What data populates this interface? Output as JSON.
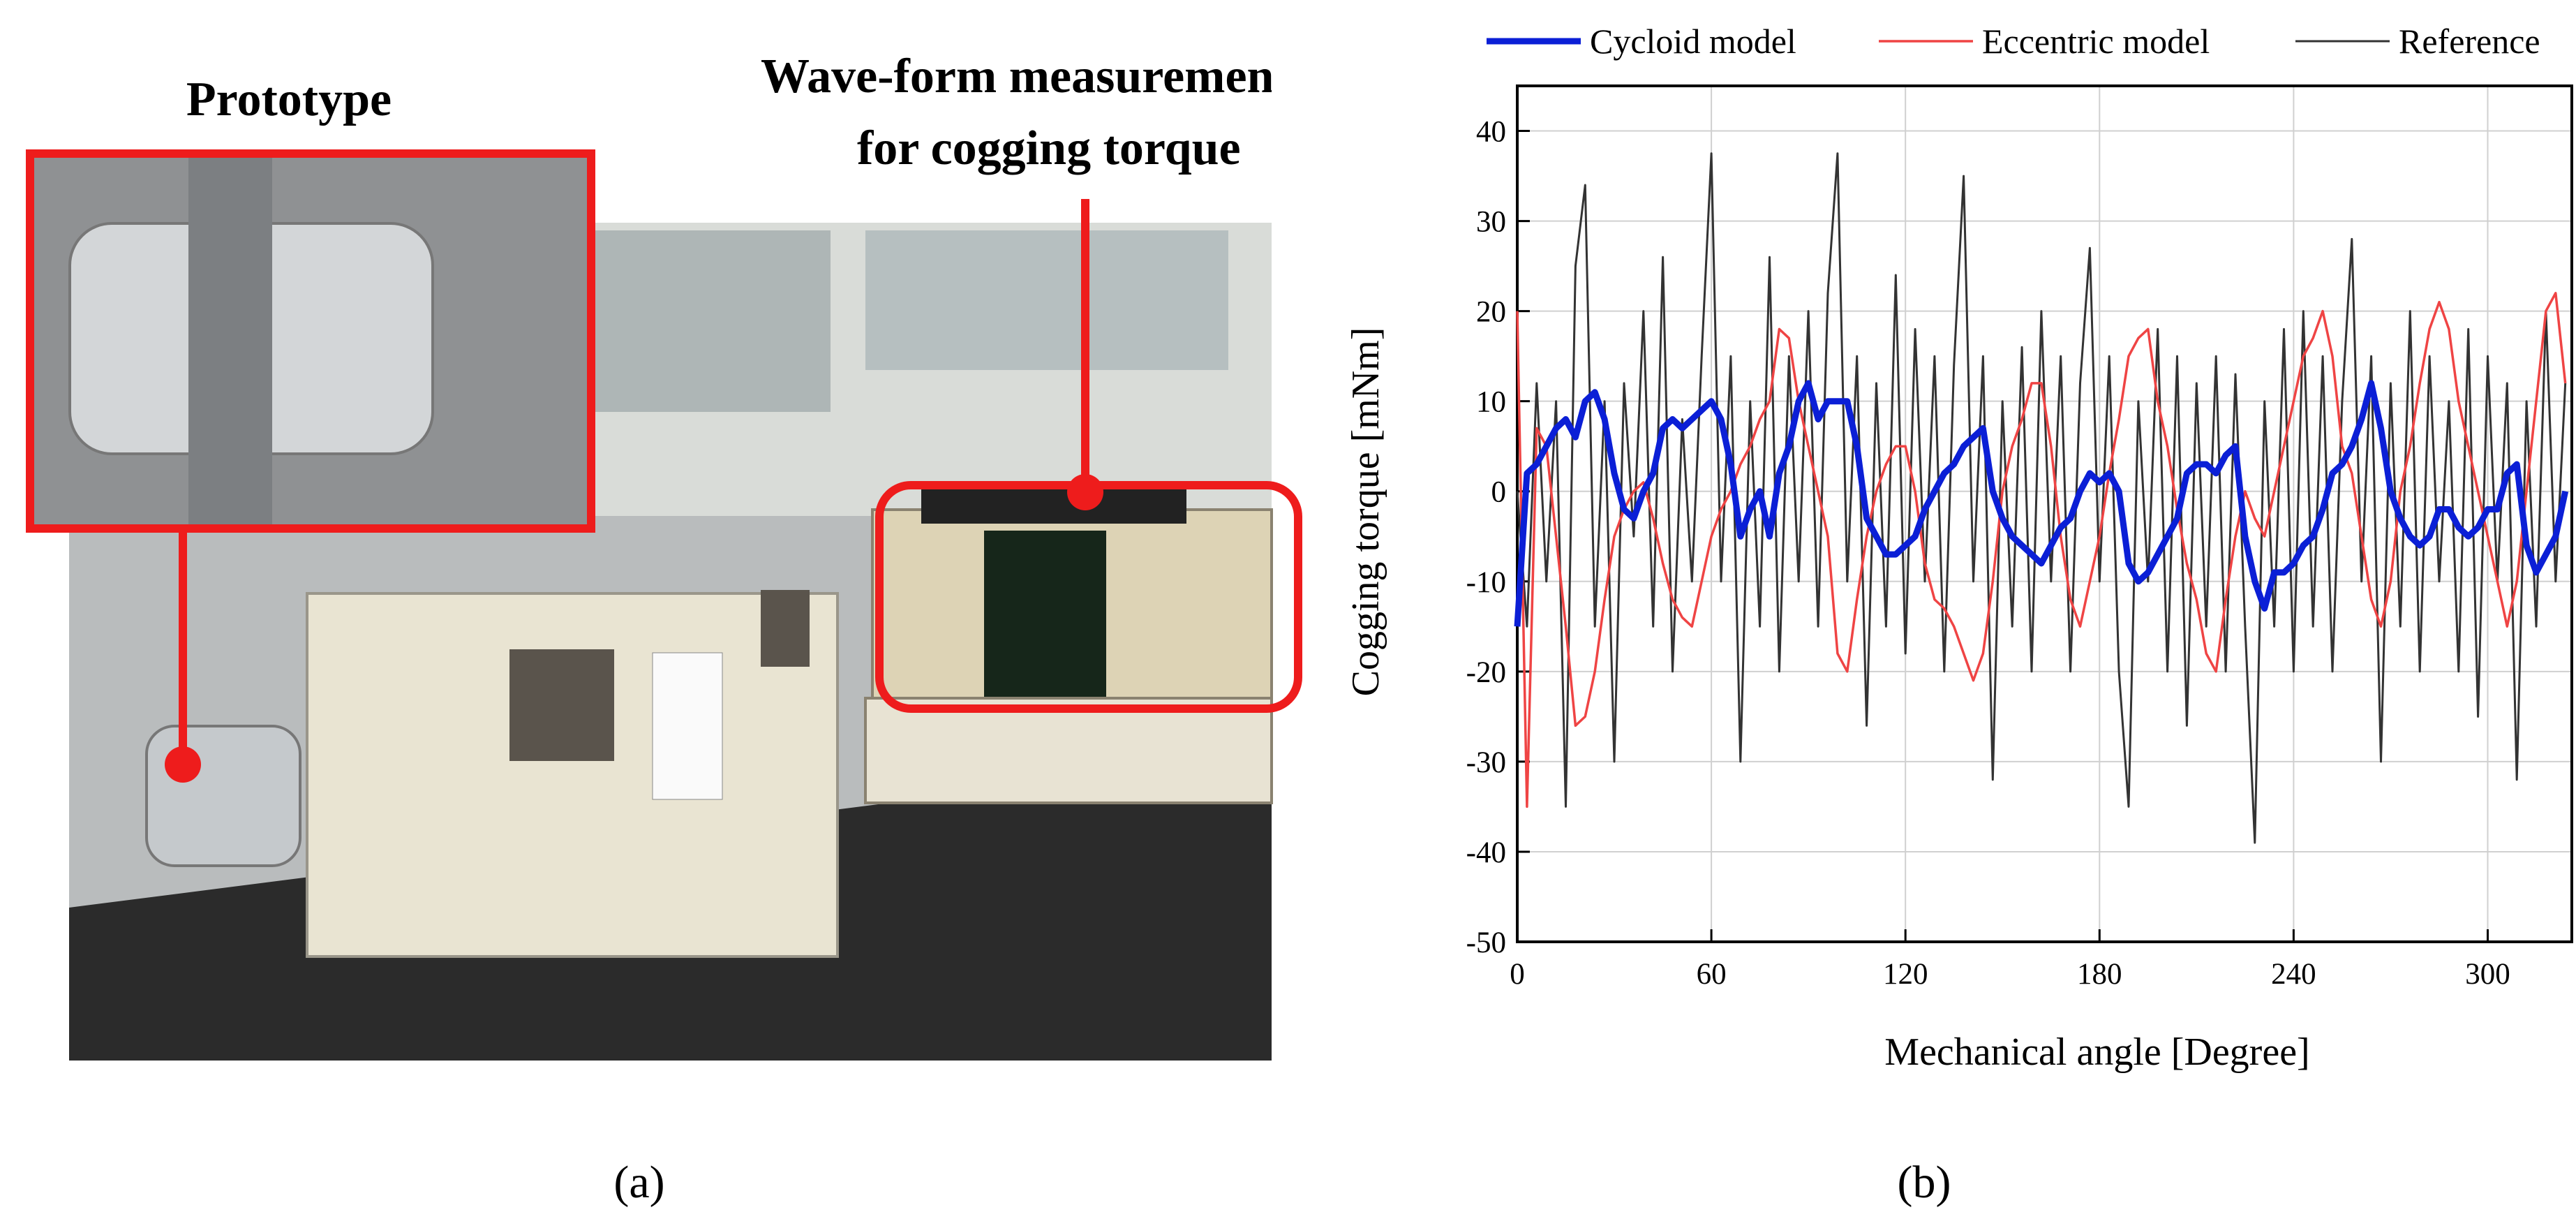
{
  "panel_a": {
    "labels": [
      "Prototype",
      "Wave-form measurement",
      "for cogging torque"
    ]
  },
  "captions": [
    "(a)",
    "(b)"
  ],
  "chart_data": {
    "type": "line",
    "xlabel": "Mechanical angle [Degree]",
    "ylabel": "Cogging torque [mNm]",
    "xlim": [
      0,
      326
    ],
    "ylim": [
      -50,
      45
    ],
    "xticks": [
      0,
      60,
      120,
      180,
      240,
      300
    ],
    "yticks": [
      -50,
      -40,
      -30,
      -20,
      -10,
      0,
      10,
      20,
      30,
      40
    ],
    "grid": true,
    "legend": "top",
    "x": [
      0,
      3,
      6,
      9,
      12,
      15,
      18,
      21,
      24,
      27,
      30,
      33,
      36,
      39,
      42,
      45,
      48,
      51,
      54,
      57,
      60,
      63,
      66,
      69,
      72,
      75,
      78,
      81,
      84,
      87,
      90,
      93,
      96,
      99,
      102,
      105,
      108,
      111,
      114,
      117,
      120,
      123,
      126,
      129,
      132,
      135,
      138,
      141,
      144,
      147,
      150,
      153,
      156,
      159,
      162,
      165,
      168,
      171,
      174,
      177,
      180,
      183,
      186,
      189,
      192,
      195,
      198,
      201,
      204,
      207,
      210,
      213,
      216,
      219,
      222,
      225,
      228,
      231,
      234,
      237,
      240,
      243,
      246,
      249,
      252,
      255,
      258,
      261,
      264,
      267,
      270,
      273,
      276,
      279,
      282,
      285,
      288,
      291,
      294,
      297,
      300,
      303,
      306,
      309,
      312,
      315,
      318,
      321,
      324
    ],
    "series": [
      {
        "name": "Cycloid model",
        "color": "#0b1fd6",
        "width": 9,
        "values": [
          -15,
          2,
          3,
          5,
          7,
          8,
          6,
          10,
          11,
          8,
          2,
          -2,
          -3,
          0,
          2,
          7,
          8,
          7,
          8,
          9,
          10,
          8,
          3,
          -5,
          -2,
          0,
          -5,
          2,
          5,
          10,
          12,
          8,
          10,
          10,
          10,
          5,
          -3,
          -5,
          -7,
          -7,
          -6,
          -5,
          -2,
          0,
          2,
          3,
          5,
          6,
          7,
          0,
          -3,
          -5,
          -6,
          -7,
          -8,
          -6,
          -4,
          -3,
          0,
          2,
          1,
          2,
          0,
          -8,
          -10,
          -9,
          -7,
          -5,
          -3,
          2,
          3,
          3,
          2,
          4,
          5,
          -5,
          -10,
          -13,
          -9,
          -9,
          -8,
          -6,
          -5,
          -2,
          2,
          3,
          5,
          8,
          12,
          7,
          0,
          -3,
          -5,
          -6,
          -5,
          -2,
          -2,
          -4,
          -5,
          -4,
          -2,
          -2,
          2,
          3,
          -6,
          -9,
          -7,
          -5,
          0
        ]
      },
      {
        "name": "Eccentric model",
        "color": "#ef4444",
        "width": 3.5,
        "values": [
          20,
          -35,
          7,
          5,
          -5,
          -15,
          -26,
          -25,
          -20,
          -12,
          -5,
          -2,
          0,
          1,
          -3,
          -8,
          -12,
          -14,
          -15,
          -10,
          -5,
          -2,
          0,
          3,
          5,
          8,
          10,
          18,
          17,
          10,
          5,
          0,
          -5,
          -18,
          -20,
          -12,
          -5,
          0,
          3,
          5,
          5,
          0,
          -8,
          -12,
          -13,
          -15,
          -18,
          -21,
          -18,
          -10,
          0,
          5,
          8,
          12,
          12,
          5,
          -5,
          -12,
          -15,
          -10,
          -5,
          2,
          8,
          15,
          17,
          18,
          10,
          5,
          -2,
          -8,
          -12,
          -18,
          -20,
          -12,
          -5,
          0,
          -3,
          -5,
          0,
          5,
          10,
          15,
          17,
          20,
          15,
          5,
          2,
          -5,
          -12,
          -15,
          -10,
          0,
          5,
          12,
          18,
          21,
          18,
          10,
          5,
          0,
          -5,
          -10,
          -15,
          -10,
          0,
          10,
          20,
          22,
          12
        ]
      },
      {
        "name": "Reference",
        "color": "#333333",
        "width": 3,
        "values": [
          0,
          -15,
          12,
          -10,
          10,
          -35,
          25,
          34,
          -15,
          10,
          -30,
          12,
          -5,
          20,
          -15,
          26,
          -20,
          8,
          -10,
          15,
          37.5,
          -10,
          15,
          -30,
          10,
          -15,
          26,
          -20,
          15,
          -10,
          20,
          -15,
          22,
          37.5,
          -10,
          15,
          -26,
          12,
          -15,
          24,
          -18,
          18,
          -10,
          15,
          -20,
          14,
          35,
          -10,
          15,
          -32,
          10,
          -15,
          16,
          -20,
          20,
          -10,
          15,
          -20,
          12,
          27,
          -10,
          15,
          -20,
          -35,
          10,
          -10,
          18,
          -20,
          15,
          -26,
          12,
          -15,
          15,
          -20,
          13,
          -15,
          -39,
          10,
          -15,
          18,
          -20,
          20,
          -15,
          15,
          -20,
          10,
          28,
          -10,
          15,
          -30,
          12,
          -15,
          20,
          -20,
          15,
          -10,
          10,
          -20,
          18,
          -25,
          15,
          -10,
          12,
          -32,
          10,
          -15,
          20,
          -10,
          12
        ]
      }
    ]
  }
}
